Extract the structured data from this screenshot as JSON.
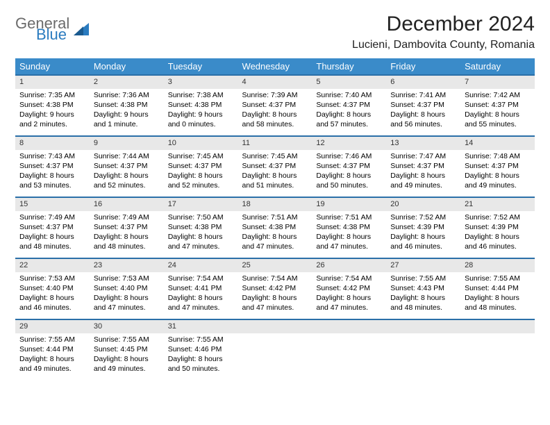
{
  "logo": {
    "top": "General",
    "bottom": "Blue"
  },
  "title": "December 2024",
  "location": "Lucieni, Dambovita County, Romania",
  "colors": {
    "header_bg": "#3a8bc9",
    "daynum_bg": "#e8e8e8",
    "daynum_border": "#2a6fa8",
    "logo_gray": "#6b6b6b",
    "logo_blue": "#2a7bbf"
  },
  "day_headers": [
    "Sunday",
    "Monday",
    "Tuesday",
    "Wednesday",
    "Thursday",
    "Friday",
    "Saturday"
  ],
  "weeks": [
    [
      {
        "num": "1",
        "sunrise": "7:35 AM",
        "sunset": "4:38 PM",
        "daylight": "9 hours and 2 minutes."
      },
      {
        "num": "2",
        "sunrise": "7:36 AM",
        "sunset": "4:38 PM",
        "daylight": "9 hours and 1 minute."
      },
      {
        "num": "3",
        "sunrise": "7:38 AM",
        "sunset": "4:38 PM",
        "daylight": "9 hours and 0 minutes."
      },
      {
        "num": "4",
        "sunrise": "7:39 AM",
        "sunset": "4:37 PM",
        "daylight": "8 hours and 58 minutes."
      },
      {
        "num": "5",
        "sunrise": "7:40 AM",
        "sunset": "4:37 PM",
        "daylight": "8 hours and 57 minutes."
      },
      {
        "num": "6",
        "sunrise": "7:41 AM",
        "sunset": "4:37 PM",
        "daylight": "8 hours and 56 minutes."
      },
      {
        "num": "7",
        "sunrise": "7:42 AM",
        "sunset": "4:37 PM",
        "daylight": "8 hours and 55 minutes."
      }
    ],
    [
      {
        "num": "8",
        "sunrise": "7:43 AM",
        "sunset": "4:37 PM",
        "daylight": "8 hours and 53 minutes."
      },
      {
        "num": "9",
        "sunrise": "7:44 AM",
        "sunset": "4:37 PM",
        "daylight": "8 hours and 52 minutes."
      },
      {
        "num": "10",
        "sunrise": "7:45 AM",
        "sunset": "4:37 PM",
        "daylight": "8 hours and 52 minutes."
      },
      {
        "num": "11",
        "sunrise": "7:45 AM",
        "sunset": "4:37 PM",
        "daylight": "8 hours and 51 minutes."
      },
      {
        "num": "12",
        "sunrise": "7:46 AM",
        "sunset": "4:37 PM",
        "daylight": "8 hours and 50 minutes."
      },
      {
        "num": "13",
        "sunrise": "7:47 AM",
        "sunset": "4:37 PM",
        "daylight": "8 hours and 49 minutes."
      },
      {
        "num": "14",
        "sunrise": "7:48 AM",
        "sunset": "4:37 PM",
        "daylight": "8 hours and 49 minutes."
      }
    ],
    [
      {
        "num": "15",
        "sunrise": "7:49 AM",
        "sunset": "4:37 PM",
        "daylight": "8 hours and 48 minutes."
      },
      {
        "num": "16",
        "sunrise": "7:49 AM",
        "sunset": "4:37 PM",
        "daylight": "8 hours and 48 minutes."
      },
      {
        "num": "17",
        "sunrise": "7:50 AM",
        "sunset": "4:38 PM",
        "daylight": "8 hours and 47 minutes."
      },
      {
        "num": "18",
        "sunrise": "7:51 AM",
        "sunset": "4:38 PM",
        "daylight": "8 hours and 47 minutes."
      },
      {
        "num": "19",
        "sunrise": "7:51 AM",
        "sunset": "4:38 PM",
        "daylight": "8 hours and 47 minutes."
      },
      {
        "num": "20",
        "sunrise": "7:52 AM",
        "sunset": "4:39 PM",
        "daylight": "8 hours and 46 minutes."
      },
      {
        "num": "21",
        "sunrise": "7:52 AM",
        "sunset": "4:39 PM",
        "daylight": "8 hours and 46 minutes."
      }
    ],
    [
      {
        "num": "22",
        "sunrise": "7:53 AM",
        "sunset": "4:40 PM",
        "daylight": "8 hours and 46 minutes."
      },
      {
        "num": "23",
        "sunrise": "7:53 AM",
        "sunset": "4:40 PM",
        "daylight": "8 hours and 47 minutes."
      },
      {
        "num": "24",
        "sunrise": "7:54 AM",
        "sunset": "4:41 PM",
        "daylight": "8 hours and 47 minutes."
      },
      {
        "num": "25",
        "sunrise": "7:54 AM",
        "sunset": "4:42 PM",
        "daylight": "8 hours and 47 minutes."
      },
      {
        "num": "26",
        "sunrise": "7:54 AM",
        "sunset": "4:42 PM",
        "daylight": "8 hours and 47 minutes."
      },
      {
        "num": "27",
        "sunrise": "7:55 AM",
        "sunset": "4:43 PM",
        "daylight": "8 hours and 48 minutes."
      },
      {
        "num": "28",
        "sunrise": "7:55 AM",
        "sunset": "4:44 PM",
        "daylight": "8 hours and 48 minutes."
      }
    ],
    [
      {
        "num": "29",
        "sunrise": "7:55 AM",
        "sunset": "4:44 PM",
        "daylight": "8 hours and 49 minutes."
      },
      {
        "num": "30",
        "sunrise": "7:55 AM",
        "sunset": "4:45 PM",
        "daylight": "8 hours and 49 minutes."
      },
      {
        "num": "31",
        "sunrise": "7:55 AM",
        "sunset": "4:46 PM",
        "daylight": "8 hours and 50 minutes."
      },
      {
        "empty": true
      },
      {
        "empty": true
      },
      {
        "empty": true
      },
      {
        "empty": true
      }
    ]
  ],
  "labels": {
    "sunrise": "Sunrise:",
    "sunset": "Sunset:",
    "daylight": "Daylight:"
  }
}
